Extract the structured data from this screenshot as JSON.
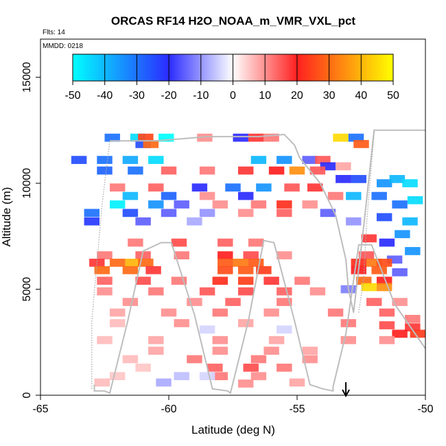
{
  "chart_data": {
    "type": "heatmap",
    "title": "ORCAS RF14 H2O_NOAA_m_VMR_VXL_pct",
    "flts_label": "Flts: 14",
    "mmdd_label": "MMDD: 0218",
    "xlabel": "Latitude (deg N)",
    "ylabel": "Altitude (m)",
    "xlim": [
      -65,
      -50
    ],
    "ylim": [
      0,
      16800
    ],
    "x_ticks": [
      -65,
      -60,
      -55,
      -50
    ],
    "y_ticks": [
      0,
      5000,
      10000,
      15000
    ],
    "colorbar": {
      "ticks": [
        -50,
        -40,
        -30,
        -20,
        -10,
        0,
        10,
        20,
        30,
        40,
        50
      ],
      "range": [
        -50,
        50
      ],
      "stops": [
        {
          "value": -50,
          "color": "#00ffff"
        },
        {
          "value": -20,
          "color": "#2b2bff"
        },
        {
          "value": 0,
          "color": "#ffffff"
        },
        {
          "value": 20,
          "color": "#ff2020"
        },
        {
          "value": 50,
          "color": "#ffff00"
        }
      ]
    },
    "marker_arrow_x": -53.1,
    "cells": [
      {
        "x": -62.2,
        "y": 12150,
        "v": -30
      },
      {
        "x": -61.2,
        "y": 12150,
        "v": -45
      },
      {
        "x": -60.9,
        "y": 12150,
        "v": 25
      },
      {
        "x": -60.1,
        "y": 12150,
        "v": -50
      },
      {
        "x": -58.6,
        "y": 12150,
        "v": 10
      },
      {
        "x": -57.2,
        "y": 12150,
        "v": -20
      },
      {
        "x": -56.6,
        "y": 12150,
        "v": 18
      },
      {
        "x": -56.0,
        "y": 12150,
        "v": 12
      },
      {
        "x": -53.3,
        "y": 12150,
        "v": 45
      },
      {
        "x": -52.7,
        "y": 12150,
        "v": -30
      },
      {
        "x": -61.0,
        "y": 11850,
        "v": -25
      },
      {
        "x": -60.7,
        "y": 11850,
        "v": 30
      },
      {
        "x": -52.5,
        "y": 11850,
        "v": 28
      },
      {
        "x": -63.5,
        "y": 11100,
        "v": -25
      },
      {
        "x": -62.5,
        "y": 11100,
        "v": -30
      },
      {
        "x": -61.5,
        "y": 11100,
        "v": -38
      },
      {
        "x": -60.5,
        "y": 11100,
        "v": -45
      },
      {
        "x": -56.5,
        "y": 11100,
        "v": -40
      },
      {
        "x": -55.5,
        "y": 11100,
        "v": -35
      },
      {
        "x": -54.5,
        "y": 11100,
        "v": -15
      },
      {
        "x": -54.0,
        "y": 11100,
        "v": 15
      },
      {
        "x": -53.8,
        "y": 10800,
        "v": -20
      },
      {
        "x": -53.2,
        "y": 10800,
        "v": 8
      },
      {
        "x": -62.5,
        "y": 10600,
        "v": -28
      },
      {
        "x": -61.3,
        "y": 10600,
        "v": -30
      },
      {
        "x": -60.0,
        "y": 10600,
        "v": 14
      },
      {
        "x": -58.5,
        "y": 10600,
        "v": 12
      },
      {
        "x": -57.0,
        "y": 10600,
        "v": 18
      },
      {
        "x": -55.8,
        "y": 10600,
        "v": 20
      },
      {
        "x": -55.0,
        "y": 10600,
        "v": 35
      },
      {
        "x": -54.2,
        "y": 10600,
        "v": 15
      },
      {
        "x": -53.2,
        "y": 10200,
        "v": -20
      },
      {
        "x": -52.6,
        "y": 10200,
        "v": -25
      },
      {
        "x": -51.6,
        "y": 10000,
        "v": -35
      },
      {
        "x": -51.1,
        "y": 10200,
        "v": -40
      },
      {
        "x": -50.6,
        "y": 10000,
        "v": -45
      },
      {
        "x": -62.0,
        "y": 9800,
        "v": 12
      },
      {
        "x": -60.5,
        "y": 9800,
        "v": 14
      },
      {
        "x": -58.8,
        "y": 9800,
        "v": -20
      },
      {
        "x": -57.5,
        "y": 9800,
        "v": -30
      },
      {
        "x": -56.3,
        "y": 9800,
        "v": -35
      },
      {
        "x": -55.2,
        "y": 9800,
        "v": 15
      },
      {
        "x": -54.3,
        "y": 9800,
        "v": 18
      },
      {
        "x": -61.5,
        "y": 9400,
        "v": -40
      },
      {
        "x": -60.0,
        "y": 9400,
        "v": -28
      },
      {
        "x": -58.5,
        "y": 9400,
        "v": 10
      },
      {
        "x": -57.0,
        "y": 9400,
        "v": -20
      },
      {
        "x": -53.5,
        "y": 9400,
        "v": 12
      },
      {
        "x": -52.8,
        "y": 9400,
        "v": -40
      },
      {
        "x": -51.8,
        "y": 9400,
        "v": -30
      },
      {
        "x": -51.0,
        "y": 9000,
        "v": -30
      },
      {
        "x": -50.4,
        "y": 9200,
        "v": -45
      },
      {
        "x": -62.0,
        "y": 9000,
        "v": -48
      },
      {
        "x": -60.5,
        "y": 9000,
        "v": -35
      },
      {
        "x": -59.5,
        "y": 9000,
        "v": -15
      },
      {
        "x": -58.0,
        "y": 9000,
        "v": 10
      },
      {
        "x": -56.5,
        "y": 9000,
        "v": 12
      },
      {
        "x": -55.5,
        "y": 9000,
        "v": 22
      },
      {
        "x": -54.5,
        "y": 9000,
        "v": 10
      },
      {
        "x": -63.0,
        "y": 8600,
        "v": -30
      },
      {
        "x": -61.5,
        "y": 8600,
        "v": -25
      },
      {
        "x": -60.0,
        "y": 8600,
        "v": -15
      },
      {
        "x": -58.5,
        "y": 8600,
        "v": -10
      },
      {
        "x": -57.0,
        "y": 8600,
        "v": 10
      },
      {
        "x": -55.5,
        "y": 8600,
        "v": 14
      },
      {
        "x": -53.8,
        "y": 8600,
        "v": -15
      },
      {
        "x": -51.6,
        "y": 8400,
        "v": -25
      },
      {
        "x": -50.6,
        "y": 8200,
        "v": -40
      },
      {
        "x": -63.0,
        "y": 8200,
        "v": -22
      },
      {
        "x": -61.0,
        "y": 8200,
        "v": -15
      },
      {
        "x": -59.0,
        "y": 8200,
        "v": -8
      },
      {
        "x": -52.8,
        "y": 8200,
        "v": -10
      },
      {
        "x": -50.9,
        "y": 7600,
        "v": -35
      },
      {
        "x": -51.5,
        "y": 7200,
        "v": -20
      },
      {
        "x": -52.2,
        "y": 7400,
        "v": 18
      },
      {
        "x": -50.5,
        "y": 6800,
        "v": -35
      },
      {
        "x": -61.3,
        "y": 7200,
        "v": 12
      },
      {
        "x": -59.6,
        "y": 7200,
        "v": 16
      },
      {
        "x": -57.8,
        "y": 7200,
        "v": 14
      },
      {
        "x": -56.6,
        "y": 7200,
        "v": 12
      },
      {
        "x": -62.5,
        "y": 6600,
        "v": 12
      },
      {
        "x": -61.0,
        "y": 6600,
        "v": 14
      },
      {
        "x": -59.5,
        "y": 6600,
        "v": 12
      },
      {
        "x": -57.8,
        "y": 6600,
        "v": 20
      },
      {
        "x": -56.8,
        "y": 6600,
        "v": 16
      },
      {
        "x": -55.5,
        "y": 6600,
        "v": 10
      },
      {
        "x": -52.3,
        "y": 6600,
        "v": 15
      },
      {
        "x": -51.2,
        "y": 6400,
        "v": -15
      },
      {
        "x": -62.8,
        "y": 6250,
        "v": 18
      },
      {
        "x": -62.0,
        "y": 6250,
        "v": 30
      },
      {
        "x": -61.4,
        "y": 6250,
        "v": 40
      },
      {
        "x": -60.9,
        "y": 6250,
        "v": 30
      },
      {
        "x": -57.8,
        "y": 6250,
        "v": 28
      },
      {
        "x": -57.2,
        "y": 6250,
        "v": 32
      },
      {
        "x": -56.6,
        "y": 6250,
        "v": 28
      },
      {
        "x": -52.6,
        "y": 6250,
        "v": 22
      },
      {
        "x": -52.0,
        "y": 6250,
        "v": 32
      },
      {
        "x": -51.6,
        "y": 6250,
        "v": 26
      },
      {
        "x": -62.6,
        "y": 5900,
        "v": 30
      },
      {
        "x": -61.5,
        "y": 5900,
        "v": 30
      },
      {
        "x": -60.6,
        "y": 5900,
        "v": 18
      },
      {
        "x": -57.8,
        "y": 5900,
        "v": 26
      },
      {
        "x": -57.0,
        "y": 5900,
        "v": 28
      },
      {
        "x": -56.3,
        "y": 5900,
        "v": 24
      },
      {
        "x": -52.6,
        "y": 5900,
        "v": 20
      },
      {
        "x": -51.8,
        "y": 5900,
        "v": 28
      },
      {
        "x": -51.0,
        "y": 5800,
        "v": -15
      },
      {
        "x": -62.5,
        "y": 5400,
        "v": 14
      },
      {
        "x": -61.0,
        "y": 5400,
        "v": 16
      },
      {
        "x": -59.6,
        "y": 5400,
        "v": 12
      },
      {
        "x": -58.0,
        "y": 5400,
        "v": 22
      },
      {
        "x": -57.0,
        "y": 5400,
        "v": 24
      },
      {
        "x": -56.0,
        "y": 5400,
        "v": 18
      },
      {
        "x": -54.8,
        "y": 5400,
        "v": 12
      },
      {
        "x": -52.4,
        "y": 5400,
        "v": 30
      },
      {
        "x": -51.6,
        "y": 5400,
        "v": 20
      },
      {
        "x": -52.2,
        "y": 5100,
        "v": 45
      },
      {
        "x": -51.6,
        "y": 5100,
        "v": 35
      },
      {
        "x": -53.0,
        "y": 5000,
        "v": -12
      },
      {
        "x": -62.5,
        "y": 4900,
        "v": 10
      },
      {
        "x": -60.5,
        "y": 4900,
        "v": 12
      },
      {
        "x": -58.5,
        "y": 4900,
        "v": 15
      },
      {
        "x": -57.0,
        "y": 4900,
        "v": 16
      },
      {
        "x": -55.5,
        "y": 4900,
        "v": 14
      },
      {
        "x": -54.2,
        "y": 4900,
        "v": 10
      },
      {
        "x": -61.5,
        "y": 4400,
        "v": 10
      },
      {
        "x": -59.0,
        "y": 4400,
        "v": 10
      },
      {
        "x": -57.5,
        "y": 4400,
        "v": 14
      },
      {
        "x": -55.5,
        "y": 4400,
        "v": 12
      },
      {
        "x": -52.0,
        "y": 4400,
        "v": 14
      },
      {
        "x": -51.0,
        "y": 4400,
        "v": 10
      },
      {
        "x": -62.0,
        "y": 3900,
        "v": 8
      },
      {
        "x": -60.0,
        "y": 3900,
        "v": 10
      },
      {
        "x": -58.0,
        "y": 3900,
        "v": 12
      },
      {
        "x": -56.0,
        "y": 3900,
        "v": 10
      },
      {
        "x": -53.5,
        "y": 3900,
        "v": 12
      },
      {
        "x": -51.5,
        "y": 3900,
        "v": 14
      },
      {
        "x": -50.5,
        "y": 3600,
        "v": 12
      },
      {
        "x": -62.0,
        "y": 3400,
        "v": 6
      },
      {
        "x": -59.5,
        "y": 3400,
        "v": 10
      },
      {
        "x": -57.0,
        "y": 3400,
        "v": 8
      },
      {
        "x": -53.0,
        "y": 3400,
        "v": 12
      },
      {
        "x": -51.5,
        "y": 3300,
        "v": 16
      },
      {
        "x": -50.5,
        "y": 3200,
        "v": 18
      },
      {
        "x": -58.5,
        "y": 3100,
        "v": -4
      },
      {
        "x": -55.5,
        "y": 3100,
        "v": -4
      },
      {
        "x": -51.0,
        "y": 2900,
        "v": 20
      },
      {
        "x": -50.3,
        "y": 2900,
        "v": 24
      },
      {
        "x": -62.5,
        "y": 2600,
        "v": 6
      },
      {
        "x": -60.5,
        "y": 2600,
        "v": 8
      },
      {
        "x": -58.0,
        "y": 2600,
        "v": 10
      },
      {
        "x": -55.8,
        "y": 2600,
        "v": 8
      },
      {
        "x": -53.0,
        "y": 2600,
        "v": 10
      },
      {
        "x": -51.5,
        "y": 2600,
        "v": 10
      },
      {
        "x": -60.5,
        "y": 2100,
        "v": 8
      },
      {
        "x": -58.0,
        "y": 2100,
        "v": 10
      },
      {
        "x": -56.0,
        "y": 2100,
        "v": 10
      },
      {
        "x": -54.5,
        "y": 2100,
        "v": 8
      },
      {
        "x": -61.5,
        "y": 1700,
        "v": 6
      },
      {
        "x": -59.0,
        "y": 1700,
        "v": 12
      },
      {
        "x": -56.5,
        "y": 1700,
        "v": 12
      },
      {
        "x": -54.5,
        "y": 1700,
        "v": 10
      },
      {
        "x": -58.2,
        "y": 1300,
        "v": 14
      },
      {
        "x": -56.8,
        "y": 1300,
        "v": 16
      },
      {
        "x": -55.5,
        "y": 1300,
        "v": 12
      },
      {
        "x": -61.0,
        "y": 1300,
        "v": 5
      },
      {
        "x": -58.0,
        "y": 900,
        "v": 12
      },
      {
        "x": -56.5,
        "y": 900,
        "v": 10
      },
      {
        "x": -62.0,
        "y": 900,
        "v": 5
      },
      {
        "x": -58.5,
        "y": 900,
        "v": -4
      },
      {
        "x": -59.5,
        "y": 900,
        "v": -6
      },
      {
        "x": -62.6,
        "y": 600,
        "v": 6
      },
      {
        "x": -60.2,
        "y": 600,
        "v": -8
      },
      {
        "x": -57.0,
        "y": 550,
        "v": 10
      },
      {
        "x": -55.0,
        "y": 600,
        "v": 8
      }
    ],
    "flight_track": [
      [
        -62.9,
        500
      ],
      [
        -62.9,
        200
      ],
      [
        -62.5,
        200
      ],
      [
        -62.3,
        100
      ],
      [
        -61.6,
        3500
      ],
      [
        -61.0,
        6800
      ],
      [
        -60.3,
        7200
      ],
      [
        -59.9,
        7200
      ],
      [
        -59.0,
        3800
      ],
      [
        -58.3,
        300
      ],
      [
        -57.7,
        200
      ],
      [
        -57.6,
        100
      ],
      [
        -56.9,
        3500
      ],
      [
        -56.3,
        7300
      ],
      [
        -55.9,
        7200
      ],
      [
        -55.1,
        3500
      ],
      [
        -54.5,
        500
      ],
      [
        -54.0,
        300
      ],
      [
        -53.6,
        200
      ],
      [
        -53.6,
        400
      ],
      [
        -53.1,
        2900
      ],
      [
        -52.6,
        7100
      ],
      [
        -52.1,
        7100
      ],
      [
        -51.2,
        4300
      ],
      [
        -50.0,
        2200
      ]
    ],
    "flight_track_upper": [
      [
        -62.3,
        12000
      ],
      [
        -61.4,
        12000
      ],
      [
        -60.5,
        12000
      ],
      [
        -59.5,
        12100
      ],
      [
        -58.5,
        12200
      ],
      [
        -57.5,
        12200
      ],
      [
        -56.5,
        12200
      ],
      [
        -55.5,
        12300
      ],
      [
        -55.1,
        11800
      ],
      [
        -54.9,
        11200
      ],
      [
        -54.5,
        10600
      ],
      [
        -54.1,
        10000
      ],
      [
        -53.5,
        8500
      ],
      [
        -53.1,
        6400
      ],
      [
        -53.0,
        5000
      ],
      [
        -52.8,
        3900
      ],
      [
        -52.4,
        8000
      ],
      [
        -52.0,
        12500
      ],
      [
        -51.5,
        12500
      ],
      [
        -50.0,
        12500
      ]
    ],
    "flight_track_dotted": [
      [
        -63.0,
        300
      ],
      [
        -63.0,
        3500
      ],
      [
        -62.6,
        9000
      ],
      [
        -62.3,
        12000
      ],
      [
        -52.6,
        3900
      ],
      [
        -52.4,
        5500
      ],
      [
        -52.3,
        8000
      ],
      [
        -52.0,
        12400
      ]
    ]
  }
}
